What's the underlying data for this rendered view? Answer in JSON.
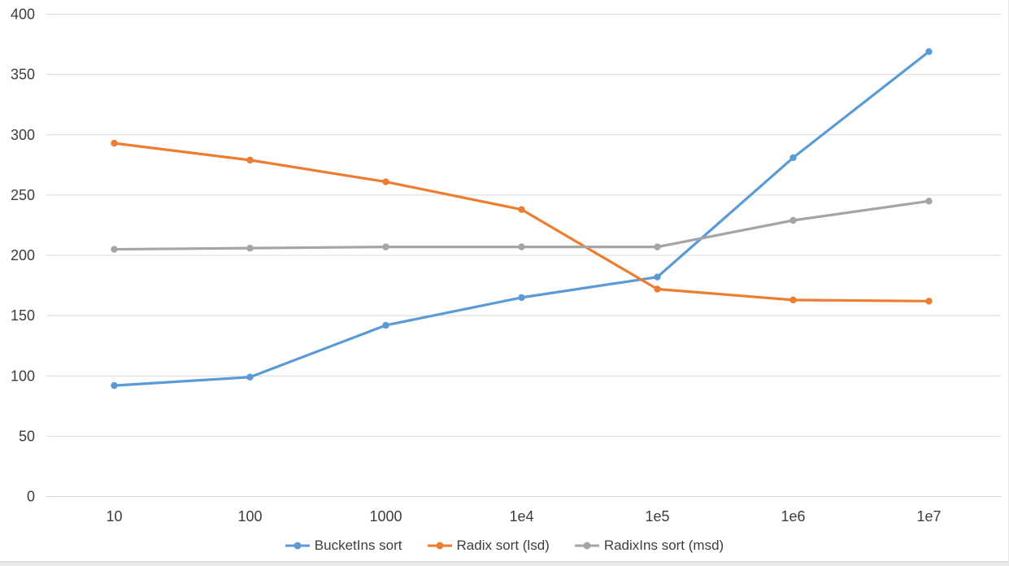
{
  "chart_data": {
    "type": "line",
    "title": "",
    "xlabel": "",
    "ylabel": "",
    "categories": [
      "10",
      "100",
      "1000",
      "1e4",
      "1e5",
      "1e6",
      "1e7"
    ],
    "series": [
      {
        "name": "BucketIns sort",
        "color": "#5B9BD5",
        "values": [
          92,
          99,
          142,
          165,
          182,
          281,
          369
        ]
      },
      {
        "name": "Radix sort (lsd)",
        "color": "#ED7D31",
        "values": [
          293,
          279,
          261,
          238,
          172,
          163,
          162
        ]
      },
      {
        "name": "RadixIns sort (msd)",
        "color": "#A5A5A5",
        "values": [
          205,
          206,
          207,
          207,
          207,
          229,
          245
        ]
      }
    ],
    "ylim": [
      0,
      400
    ],
    "y_ticks": [
      0,
      50,
      100,
      150,
      200,
      250,
      300,
      350,
      400
    ],
    "grid": true,
    "legend_position": "bottom",
    "marker": "circle"
  },
  "colors": {
    "gridline": "#D9D9D9",
    "axis_text": "#3D3D3D",
    "background": "#FFFFFF",
    "bottom_strip": "#E9E9E9"
  }
}
